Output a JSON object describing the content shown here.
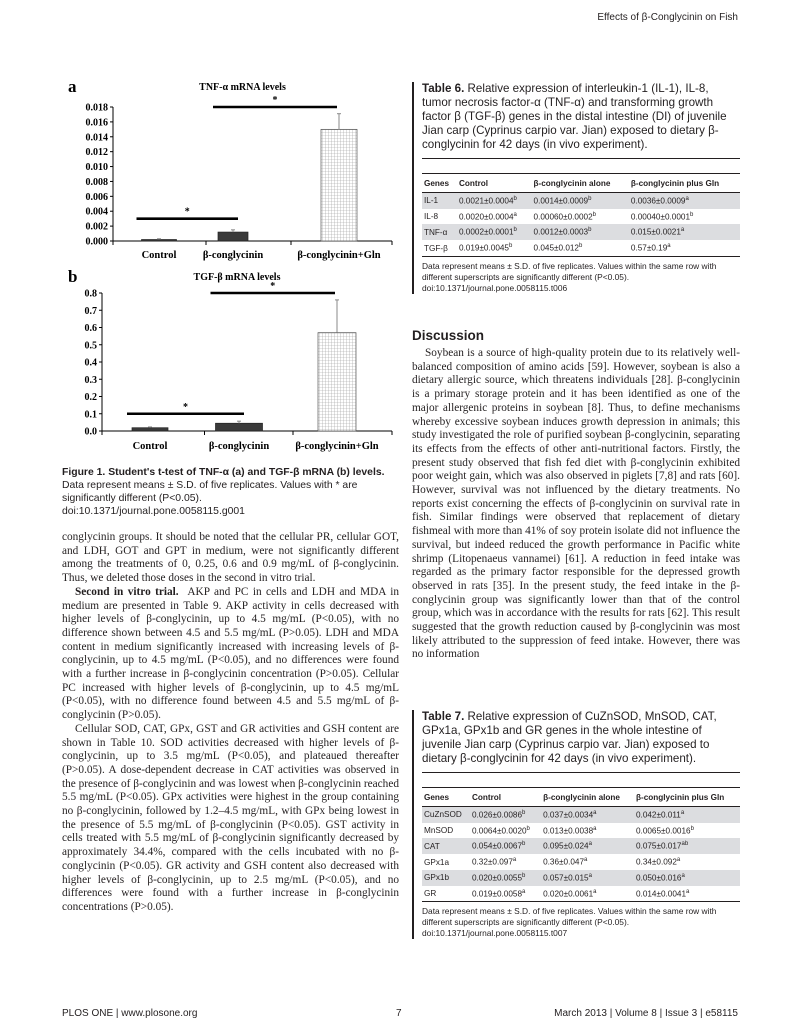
{
  "running_head": "Effects of β-Conglycinin on Fish",
  "chart_data": [
    {
      "type": "bar",
      "panel": "a",
      "title": "TNF-α mRNA levels",
      "categories": [
        "Control",
        "β-conglycinin",
        "β-conglycinin+Gln"
      ],
      "values": [
        0.0002,
        0.0012,
        0.015
      ],
      "errors": [
        0.0001,
        0.0003,
        0.0021
      ],
      "ylim": [
        0,
        0.018
      ],
      "yticks": [
        "0.000",
        "0.002",
        "0.004",
        "0.006",
        "0.008",
        "0.010",
        "0.012",
        "0.014",
        "0.016",
        "0.018"
      ],
      "bar_colors": [
        "#3a3a3a",
        "#3a3a3a",
        "hatched-grid"
      ],
      "significance": [
        {
          "from": 0,
          "to": 1,
          "level": 0.003,
          "label": "*"
        },
        {
          "from": 1,
          "to": 2,
          "level": 0.018,
          "label": "*"
        }
      ],
      "grid": false
    },
    {
      "type": "bar",
      "panel": "b",
      "title": "TGF-β mRNA levels",
      "categories": [
        "Control",
        "β-conglycinin",
        "β-conglycinin+Gln"
      ],
      "values": [
        0.019,
        0.045,
        0.57
      ],
      "errors": [
        0.0045,
        0.012,
        0.19
      ],
      "ylim": [
        0,
        0.8
      ],
      "yticks": [
        "0.0",
        "0.1",
        "0.2",
        "0.3",
        "0.4",
        "0.5",
        "0.6",
        "0.7",
        "0.8"
      ],
      "bar_colors": [
        "#3a3a3a",
        "#3a3a3a",
        "hatched-grid"
      ],
      "significance": [
        {
          "from": 0,
          "to": 1,
          "level": 0.1,
          "label": "*"
        },
        {
          "from": 1,
          "to": 2,
          "level": 0.8,
          "label": "*"
        }
      ],
      "grid": false
    }
  ],
  "figure1": {
    "title": "Figure 1. Student's t-test of TNF-α (a) and TGF-β mRNA (b) levels.",
    "caption": "Data represent means ± S.D. of five replicates. Values with * are significantly different (P<0.05).",
    "doi": "doi:10.1371/journal.pone.0058115.g001"
  },
  "left_text": {
    "p1": "conglycinin groups. It should be noted that the cellular PR, cellular GOT, and LDH, GOT and GPT in medium, were not significantly different among the treatments of 0, 0.25, 0.6 and 0.9 mg/mL of β-conglycinin. Thus, we deleted those doses in the second in vitro trial.",
    "p2_heading": "Second in vitro trial.",
    "p2": "AKP and PC in cells and LDH and MDA in medium are presented in Table 9. AKP activity in cells decreased with higher levels of β-conglycinin, up to 4.5 mg/mL (P<0.05), with no difference shown between 4.5 and 5.5 mg/mL (P>0.05). LDH and MDA content in medium significantly increased with increasing levels of β-conglycinin, up to 4.5 mg/mL (P<0.05), and no differences were found with a further increase in β-conglycinin concentration (P>0.05). Cellular PC increased with higher levels of β-conglycinin, up to 4.5 mg/mL (P<0.05), with no difference found between 4.5 and 5.5 mg/mL of β-conglycinin (P>0.05).",
    "p3": "Cellular SOD, CAT, GPx, GST and GR activities and GSH content are shown in Table 10. SOD activities decreased with higher levels of β-conglycinin, up to 3.5 mg/mL (P<0.05), and plateaued thereafter (P>0.05). A dose-dependent decrease in CAT activities was observed in the presence of β-conglycinin and was lowest when β-conglycinin reached 5.5 mg/mL (P<0.05). GPx activities were highest in the group containing no β-conglycinin, followed by 1.2–4.5 mg/mL, with GPx being lowest in the presence of 5.5 mg/mL of β-conglycinin (P<0.05). GST activity in cells treated with 5.5 mg/mL of β-conglycinin significantly decreased by approximately 34.4%, compared with the cells incubated with no β-conglycinin (P<0.05). GR activity and GSH content also decreased with higher levels of β-conglycinin, up to 2.5 mg/mL (P<0.05), and no differences were found with a further increase in β-conglycinin concentrations (P>0.05)."
  },
  "table6": {
    "label": "Table 6.",
    "title": "Relative expression of interleukin-1 (IL-1), IL-8, tumor necrosis factor-α (TNF-α) and transforming growth factor β (TGF-β) genes in the distal intestine (DI) of juvenile Jian carp (Cyprinus carpio var. Jian) exposed to dietary β-conglycinin for 42 days (in vivo experiment).",
    "headers": [
      "Genes",
      "Control",
      "β-conglycinin alone",
      "β-conglycinin plus Gln"
    ],
    "rows": [
      {
        "gene": "IL-1",
        "cells": [
          [
            "0.0021±0.0004",
            "b"
          ],
          [
            "0.0014±0.0009",
            "b"
          ],
          [
            "0.0036±0.0009",
            "a"
          ]
        ]
      },
      {
        "gene": "IL-8",
        "cells": [
          [
            "0.0020±0.0004",
            "a"
          ],
          [
            "0.00060±0.0002",
            "b"
          ],
          [
            "0.00040±0.0001",
            "b"
          ]
        ]
      },
      {
        "gene": "TNF-α",
        "cells": [
          [
            "0.0002±0.0001",
            "b"
          ],
          [
            "0.0012±0.0003",
            "b"
          ],
          [
            "0.015±0.0021",
            "a"
          ]
        ]
      },
      {
        "gene": "TGF-β",
        "cells": [
          [
            "0.019±0.0045",
            "b"
          ],
          [
            "0.045±0.012",
            "b"
          ],
          [
            "0.57±0.19",
            "a"
          ]
        ]
      }
    ],
    "footnote": "Data represent means ± S.D. of five replicates. Values within the same row with different superscripts are significantly different (P<0.05).",
    "doi": "doi:10.1371/journal.pone.0058115.t006"
  },
  "discussion": {
    "heading": "Discussion",
    "p1": "Soybean is a source of high-quality protein due to its relatively well-balanced composition of amino acids [59]. However, soybean is also a dietary allergic source, which threatens individuals [28]. β-conglycinin is a primary storage protein and it has been identified as one of the major allergenic proteins in soybean [8]. Thus, to define mechanisms whereby excessive soybean induces growth depression in animals; this study investigated the role of purified soybean β-conglycinin, separating its effects from the effects of other anti-nutritional factors. Firstly, the present study observed that fish fed diet with β-conglycinin exhibited poor weight gain, which was also observed in piglets [7,8] and rats [60]. However, survival was not influenced by the dietary treatments. No reports exist concerning the effects of β-conglycinin on survival rate in fish. Similar findings were observed that replacement of dietary fishmeal with more than 41% of soy protein isolate did not influence the survival, but indeed reduced the growth performance in Pacific white shrimp (Litopenaeus vannamei) [61]. A reduction in feed intake was regarded as the primary factor responsible for the depressed growth observed in rats [35]. In the present study, the feed intake in the β-conglycinin group was significantly lower than that of the control group, which was in accordance with the results for rats [62]. This result suggested that the growth reduction caused by β-conglycinin was most likely attributed to the suppression of feed intake. However, there was no information"
  },
  "table7": {
    "label": "Table 7.",
    "title": "Relative expression of CuZnSOD, MnSOD, CAT, GPx1a, GPx1b and GR genes in the whole intestine of juvenile Jian carp (Cyprinus carpio var. Jian) exposed to dietary β-conglycinin for 42 days (in vivo experiment).",
    "headers": [
      "Genes",
      "Control",
      "β-conglycinin alone",
      "β-conglycinin plus Gln"
    ],
    "rows": [
      {
        "gene": "CuZnSOD",
        "cells": [
          [
            "0.026±0.0086",
            "b"
          ],
          [
            "0.037±0.0034",
            "a"
          ],
          [
            "0.042±0.011",
            "a"
          ]
        ]
      },
      {
        "gene": "MnSOD",
        "cells": [
          [
            "0.0064±0.0020",
            "b"
          ],
          [
            "0.013±0.0038",
            "a"
          ],
          [
            "0.0065±0.0016",
            "b"
          ]
        ]
      },
      {
        "gene": "CAT",
        "cells": [
          [
            "0.054±0.0067",
            "b"
          ],
          [
            "0.095±0.024",
            "a"
          ],
          [
            "0.075±0.017",
            "ab"
          ]
        ]
      },
      {
        "gene": "GPx1a",
        "cells": [
          [
            "0.32±0.097",
            "a"
          ],
          [
            "0.36±0.047",
            "a"
          ],
          [
            "0.34±0.092",
            "a"
          ]
        ]
      },
      {
        "gene": "GPx1b",
        "cells": [
          [
            "0.020±0.0055",
            "b"
          ],
          [
            "0.057±0.015",
            "a"
          ],
          [
            "0.050±0.016",
            "a"
          ]
        ]
      },
      {
        "gene": "GR",
        "cells": [
          [
            "0.019±0.0058",
            "a"
          ],
          [
            "0.020±0.0061",
            "a"
          ],
          [
            "0.014±0.0041",
            "a"
          ]
        ]
      }
    ],
    "footnote": "Data represent means ± S.D. of five replicates. Values within the same row with different superscripts are significantly different (P<0.05).",
    "doi": "doi:10.1371/journal.pone.0058115.t007"
  },
  "footer": {
    "journal": "PLOS ONE | www.plosone.org",
    "page": "7",
    "issue": "March 2013 | Volume 8 | Issue 3 | e58115"
  }
}
